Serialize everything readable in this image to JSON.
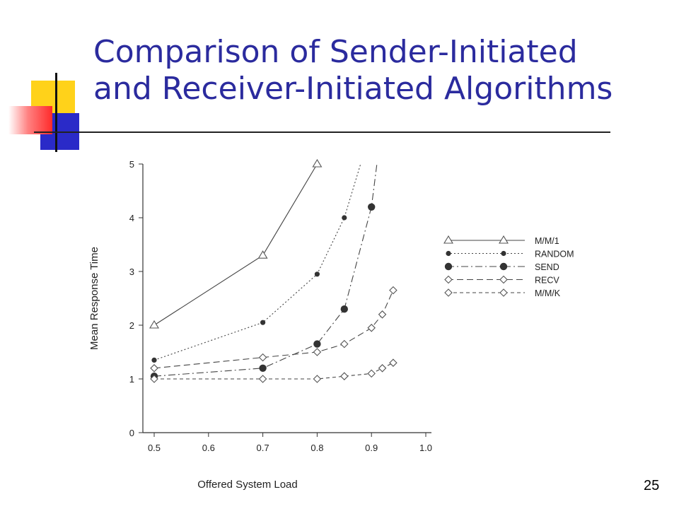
{
  "slide": {
    "title_line1": "Comparison of Sender-Initiated",
    "title_line2": "and Receiver-Initiated Algorithms",
    "number": "25"
  },
  "colors": {
    "title": "#2b2b9e",
    "accent_yellow": "#ffd21a",
    "accent_blue": "#2a2ac8",
    "accent_red": "#ff2a2a"
  },
  "chart_data": {
    "type": "line",
    "title": "",
    "xlabel": "Offered System Load",
    "ylabel": "Mean Response Time",
    "xlim": [
      0.5,
      1.0
    ],
    "ylim": [
      0,
      5
    ],
    "xticks": [
      "0.5",
      "0.6",
      "0.7",
      "0.8",
      "0.9",
      "1.0"
    ],
    "yticks": [
      "0",
      "1",
      "2",
      "3",
      "4",
      "5"
    ],
    "grid": false,
    "legend_position": "top-right",
    "series": [
      {
        "name": "M/M/1",
        "marker": "open-triangle",
        "dash": "solid",
        "x": [
          0.5,
          0.7,
          0.8
        ],
        "y": [
          2.0,
          3.3,
          5.0
        ]
      },
      {
        "name": "RANDOM",
        "marker": "small-filled-circle",
        "dash": "dotted",
        "x": [
          0.5,
          0.7,
          0.8,
          0.85,
          0.88
        ],
        "y": [
          1.35,
          2.05,
          2.95,
          4.0,
          5.0
        ]
      },
      {
        "name": "SEND",
        "marker": "filled-circle",
        "dash": "dash-dot",
        "x": [
          0.5,
          0.7,
          0.8,
          0.85,
          0.9,
          0.91
        ],
        "y": [
          1.05,
          1.2,
          1.65,
          2.3,
          4.2,
          5.0
        ]
      },
      {
        "name": "RECV",
        "marker": "open-diamond",
        "dash": "long-dash",
        "x": [
          0.5,
          0.7,
          0.8,
          0.85,
          0.9,
          0.92,
          0.94
        ],
        "y": [
          1.2,
          1.4,
          1.5,
          1.65,
          1.95,
          2.2,
          2.65
        ]
      },
      {
        "name": "M/M/K",
        "marker": "open-diamond",
        "dash": "dashed",
        "x": [
          0.5,
          0.7,
          0.8,
          0.85,
          0.9,
          0.92,
          0.94
        ],
        "y": [
          1.0,
          1.0,
          1.0,
          1.05,
          1.1,
          1.2,
          1.3
        ]
      }
    ]
  }
}
